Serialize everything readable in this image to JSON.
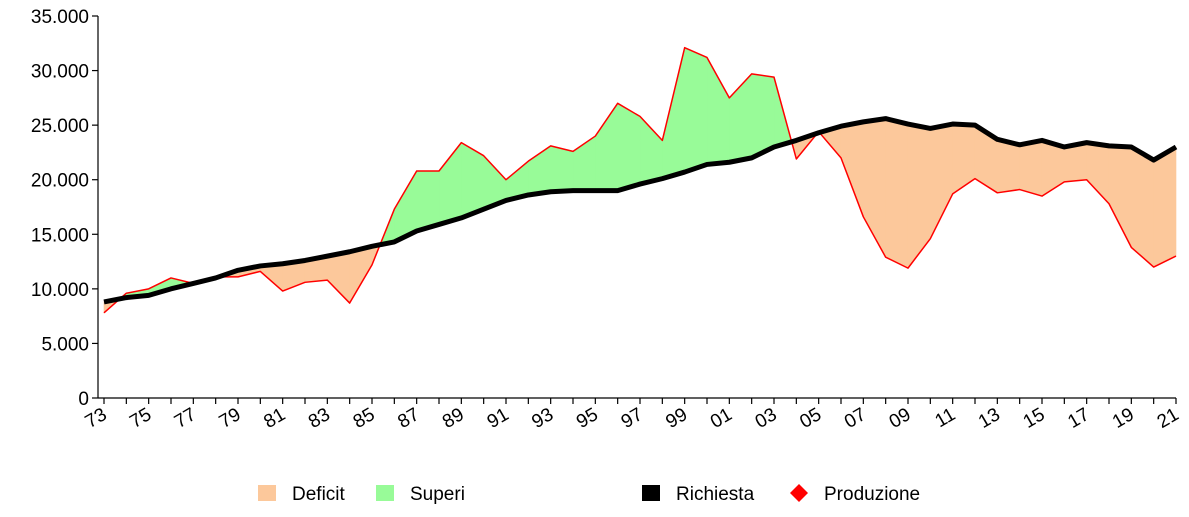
{
  "chart_data": {
    "type": "line",
    "title": "",
    "xlabel": "",
    "ylabel": "",
    "ylim": [
      0,
      35000
    ],
    "yticks": [
      "0",
      "5.000",
      "10.000",
      "15.000",
      "20.000",
      "25.000",
      "30.000",
      "35.000"
    ],
    "ytick_values": [
      0,
      5000,
      10000,
      15000,
      20000,
      25000,
      30000,
      35000
    ],
    "x": [
      "73",
      "74",
      "75",
      "76",
      "77",
      "78",
      "79",
      "80",
      "81",
      "82",
      "83",
      "84",
      "85",
      "86",
      "87",
      "88",
      "89",
      "90",
      "91",
      "92",
      "93",
      "94",
      "95",
      "96",
      "97",
      "98",
      "99",
      "00",
      "01",
      "02",
      "03",
      "04",
      "05",
      "06",
      "07",
      "08",
      "09",
      "10",
      "11",
      "12",
      "13",
      "14",
      "15",
      "16",
      "17",
      "18",
      "19",
      "20",
      "21"
    ],
    "xtick_labels": [
      "73",
      "75",
      "77",
      "79",
      "81",
      "83",
      "85",
      "87",
      "89",
      "91",
      "93",
      "95",
      "97",
      "99",
      "01",
      "03",
      "05",
      "07",
      "09",
      "11",
      "13",
      "15",
      "17",
      "19",
      "21"
    ],
    "series": [
      {
        "name": "Richiesta",
        "color": "#000000",
        "values": [
          8800,
          9200,
          9400,
          10000,
          10500,
          11000,
          11700,
          12100,
          12300,
          12600,
          13000,
          13400,
          13900,
          14300,
          15300,
          15900,
          16500,
          17300,
          18100,
          18600,
          18900,
          19000,
          19000,
          19000,
          19600,
          20100,
          20700,
          21400,
          21600,
          22000,
          23000,
          23600,
          24300,
          24900,
          25300,
          25600,
          25100,
          24700,
          25100,
          25000,
          23700,
          23200,
          23600,
          23000,
          23400,
          23100,
          23000,
          21800,
          23000
        ]
      },
      {
        "name": "Produzione",
        "color": "#ff0000",
        "values": [
          7800,
          9600,
          10000,
          11000,
          10500,
          11100,
          11100,
          11600,
          9800,
          10600,
          10800,
          8700,
          12200,
          17300,
          20800,
          20800,
          23400,
          22200,
          20000,
          21700,
          23100,
          22600,
          24000,
          27000,
          25800,
          23600,
          32100,
          31200,
          27500,
          29700,
          29400,
          21900,
          24400,
          22000,
          16600,
          12900,
          11900,
          14600,
          18700,
          20100,
          18800,
          19100,
          18500,
          19800,
          20000,
          17800,
          13800,
          12000,
          13000
        ]
      }
    ],
    "fill_between": {
      "deficit_color": "#fcc89b",
      "surplus_color": "#98fb98"
    },
    "legend": {
      "placement": "bottom",
      "items": [
        {
          "label": "Deficit",
          "color": "#fcc89b",
          "marker": "square"
        },
        {
          "label": "Superi",
          "color": "#98fb98",
          "marker": "square"
        },
        {
          "label": "Richiesta",
          "color": "#000000",
          "marker": "square"
        },
        {
          "label": "Produzione",
          "color": "#ff0000",
          "marker": "diamond"
        }
      ]
    }
  }
}
